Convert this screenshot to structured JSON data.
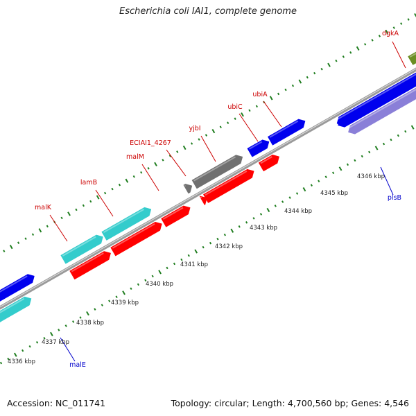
{
  "title": "Escherichia coli IAI1, complete genome",
  "footer": {
    "accession": "Accession: NC_011741",
    "summary": "Topology: circular; Length: 4,700,560 bp; Genes: 4,546"
  },
  "colors": {
    "backbone": "#9a9a9a",
    "tick_major": "#1e7d1e",
    "tick_minor": "#1e7d1e",
    "label_red": "#cc0000",
    "label_blue": "#0000cc",
    "cds_red": "#ff0000",
    "cds_blue": "#0000ee",
    "cds_cyan": "#33cccc",
    "cds_grey": "#707070",
    "cds_olive": "#6b8e23",
    "cds_purple": "#8a7fd8"
  },
  "kbp_labels": [
    "4336 kbp",
    "4337 kbp",
    "4338 kbp",
    "4339 kbp",
    "4340 kbp",
    "4341 kbp",
    "4342 kbp",
    "4343 kbp",
    "4344 kbp",
    "4345 kbp",
    "4346 kbp"
  ],
  "gene_labels": [
    {
      "text": "dgkA",
      "color": "red"
    },
    {
      "text": "ubiA",
      "color": "red"
    },
    {
      "text": "ubiC",
      "color": "red"
    },
    {
      "text": "yjbI",
      "color": "red"
    },
    {
      "text": "ECIAI1_4267",
      "color": "red"
    },
    {
      "text": "malM",
      "color": "red"
    },
    {
      "text": "lamB",
      "color": "red"
    },
    {
      "text": "malK",
      "color": "red"
    },
    {
      "text": "plsB",
      "color": "blue"
    },
    {
      "text": "malE",
      "color": "blue"
    }
  ],
  "features": [
    {
      "color": "cyan",
      "strand": "outer",
      "dir": "forward"
    },
    {
      "color": "cyan",
      "strand": "outer",
      "dir": "forward"
    },
    {
      "color": "red",
      "strand": "inner",
      "dir": "forward"
    },
    {
      "color": "red",
      "strand": "inner",
      "dir": "forward"
    },
    {
      "color": "red",
      "strand": "inner",
      "dir": "forward"
    },
    {
      "color": "grey",
      "strand": "outer",
      "dir": "forward"
    },
    {
      "color": "grey",
      "strand": "outer",
      "dir": "forward"
    },
    {
      "color": "red",
      "strand": "inner",
      "dir": "forward"
    },
    {
      "color": "red",
      "strand": "inner",
      "dir": "forward"
    },
    {
      "color": "blue",
      "strand": "outer",
      "dir": "forward"
    },
    {
      "color": "blue",
      "strand": "outer",
      "dir": "forward"
    },
    {
      "color": "red",
      "strand": "inner",
      "dir": "forward"
    },
    {
      "color": "blue",
      "strand": "inner",
      "dir": "reverse"
    },
    {
      "color": "blue",
      "strand": "inner",
      "dir": "reverse"
    },
    {
      "color": "purple",
      "strand": "inner",
      "dir": "reverse"
    },
    {
      "color": "olive",
      "strand": "outer",
      "dir": "forward"
    },
    {
      "color": "red",
      "strand": "inner",
      "dir": "forward"
    },
    {
      "color": "blue",
      "strand": "outer",
      "dir": "forward"
    },
    {
      "color": "cyan",
      "strand": "outer",
      "dir": "forward"
    },
    {
      "color": "cyan",
      "strand": "outer",
      "dir": "forward"
    },
    {
      "color": "blue",
      "strand": "outer",
      "dir": "forward"
    }
  ]
}
